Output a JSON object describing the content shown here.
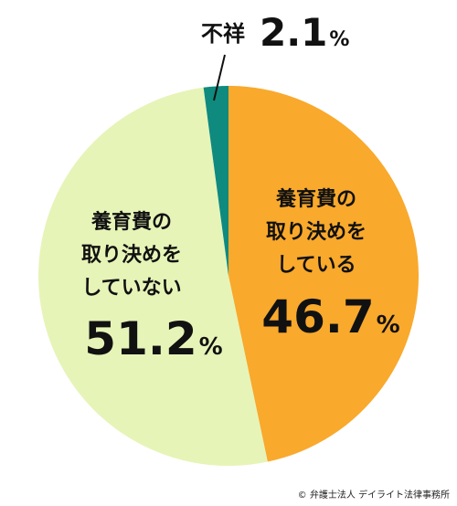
{
  "chart_data": {
    "type": "pie",
    "start_angle_deg": 0,
    "direction": "clockwise",
    "slices": [
      {
        "label_lines": [
          "養育費の",
          "取り決めを",
          "している"
        ],
        "value": 46.7,
        "value_text": "46.7",
        "unit": "%",
        "color": "#f9a92c"
      },
      {
        "label_lines": [
          "養育費の",
          "取り決めを",
          "していない"
        ],
        "value": 51.2,
        "value_text": "51.2",
        "unit": "%",
        "color": "#e6f4b8"
      },
      {
        "label_lines": [
          "不祥"
        ],
        "value": 2.1,
        "value_text": "2.1",
        "unit": "%",
        "color": "#0f8a7f"
      }
    ]
  },
  "credit": "© 弁護士法人 デイライト法律事務所"
}
